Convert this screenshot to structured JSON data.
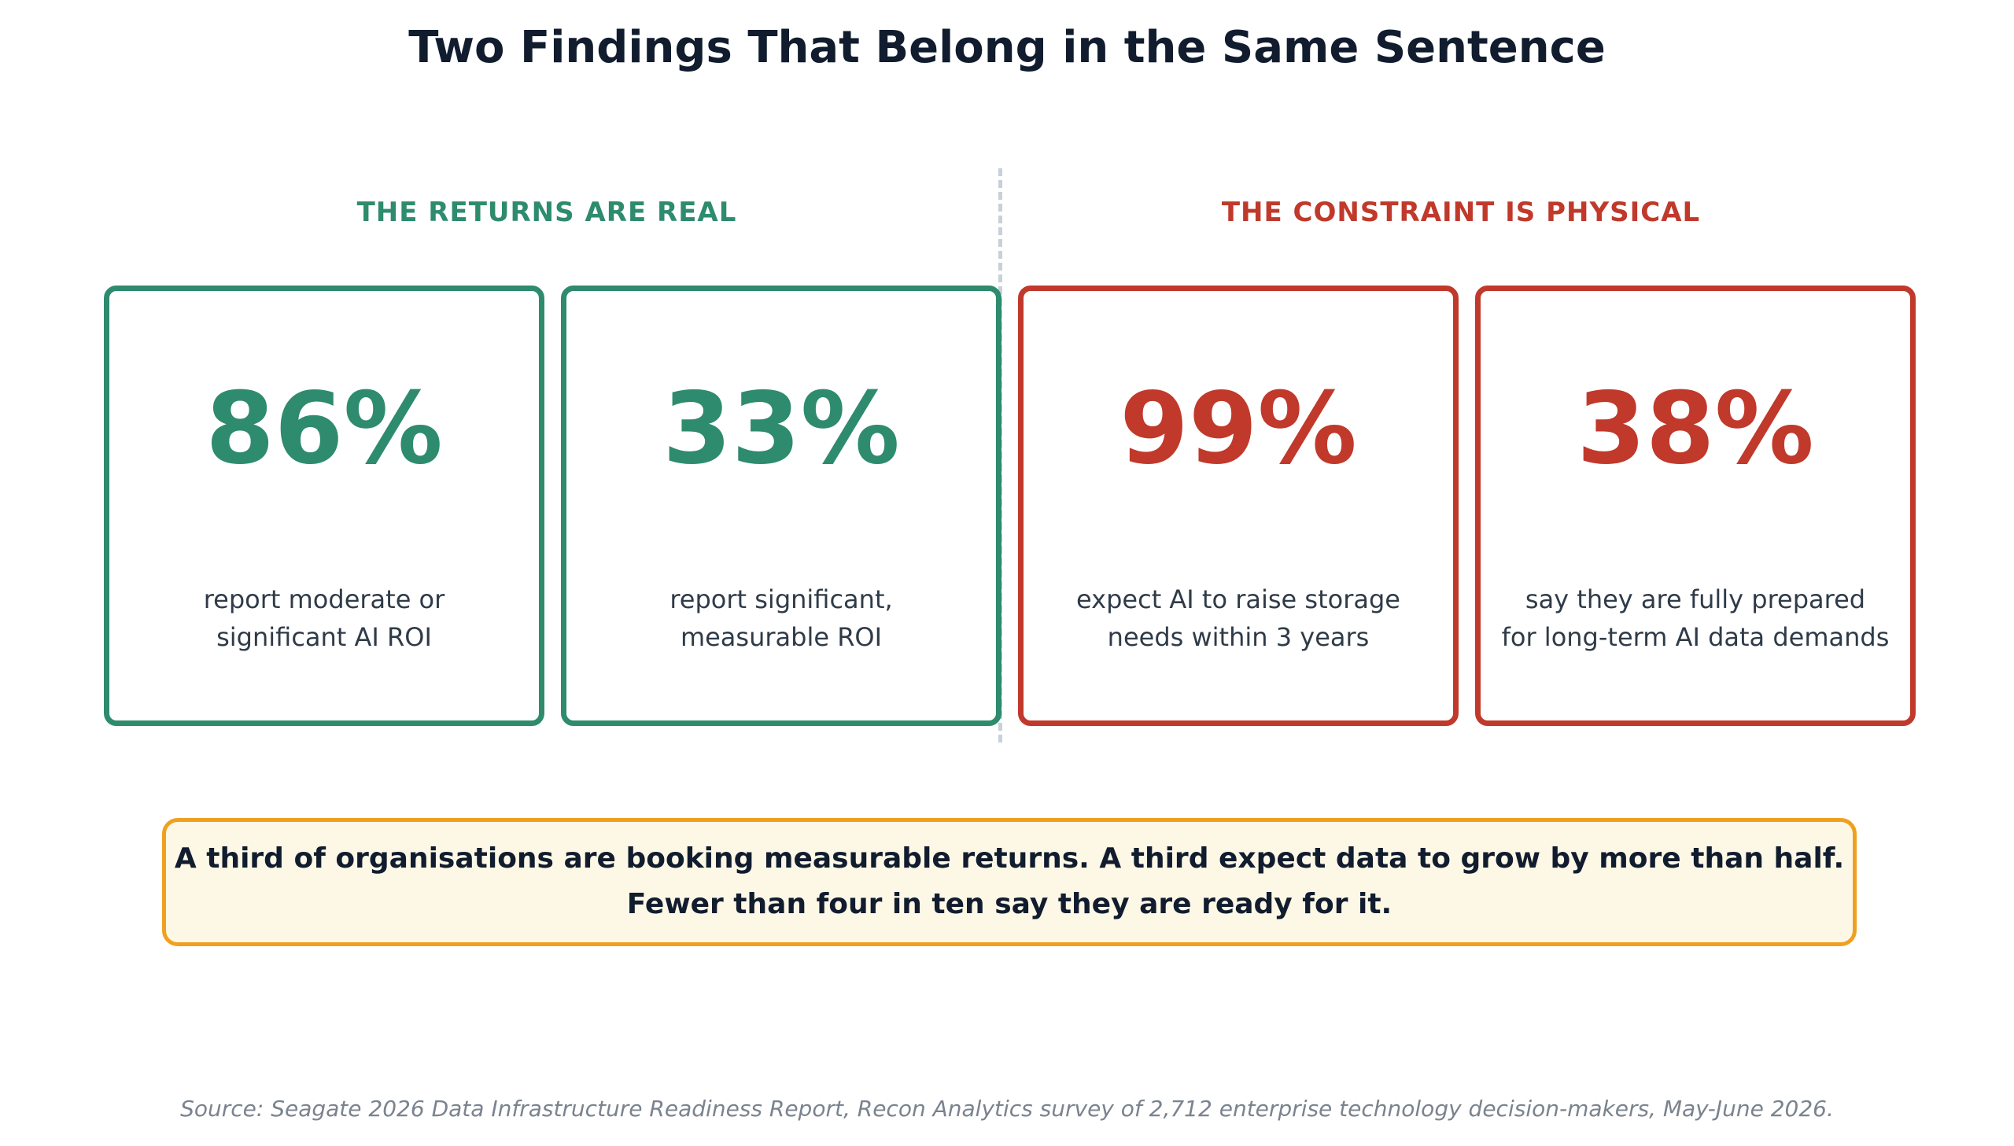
{
  "title": "Two Findings That Belong in the Same Sentence",
  "colors": {
    "returns": "#2e8b6e",
    "constraint": "#c0392b",
    "callout_border": "#f0a020",
    "callout_background": "#fdf7e6"
  },
  "sections": [
    {
      "label": "THE RETURNS ARE REAL",
      "cards": [
        {
          "value": "86%",
          "line1": "report moderate or",
          "line2": "significant AI ROI"
        },
        {
          "value": "33%",
          "line1": "report significant,",
          "line2": "measurable ROI"
        }
      ]
    },
    {
      "label": "THE CONSTRAINT IS PHYSICAL",
      "cards": [
        {
          "value": "99%",
          "line1": "expect AI to raise storage",
          "line2": "needs within 3 years"
        },
        {
          "value": "38%",
          "line1": "say they are fully prepared",
          "line2": "for long-term AI data demands"
        }
      ]
    }
  ],
  "callout": {
    "line1": "A third of organisations are booking measurable returns. A third expect data to grow by more than half.",
    "line2": "Fewer than four in ten say they are ready for it."
  },
  "source": "Source: Seagate 2026 Data Infrastructure Readiness Report, Recon Analytics survey of 2,712 enterprise technology decision-makers, May-June 2026."
}
